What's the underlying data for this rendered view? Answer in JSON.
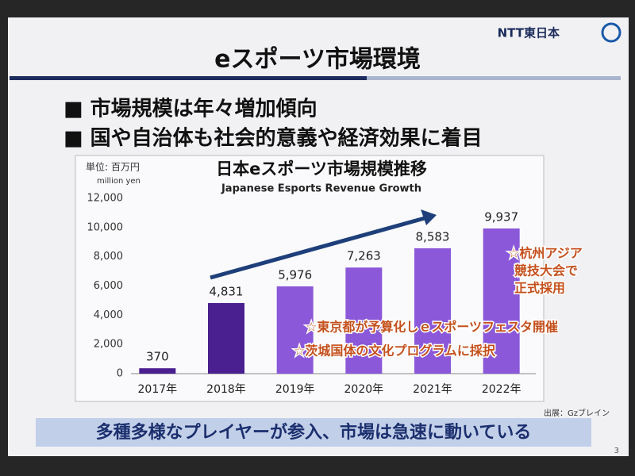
{
  "slide": {
    "logo": "NTT東日本",
    "title": "eスポーツ市場環境",
    "bullets": [
      "■ 市場規模は年々増加傾向",
      "■ 国や自治体も社会的意義や経済効果に着目"
    ],
    "source": "出展：Gzブレイン",
    "banner": "多種多様なプレイヤーが参入、市場は急速に動いている",
    "page_number": "3"
  },
  "chart_data": {
    "type": "bar",
    "title": "日本eスポーツ市場規模推移",
    "subtitle": "Japanese Esports Revenue Growth",
    "unit_label": "単位: 百万円",
    "unit_label_en": "million yen",
    "categories": [
      "2017年",
      "2018年",
      "2019年",
      "2020年",
      "2021年",
      "2022年"
    ],
    "values": [
      370,
      4831,
      5976,
      7263,
      8583,
      9937
    ],
    "value_labels": [
      "370",
      "4,831",
      "5,976",
      "7,263",
      "8,583",
      "9,937"
    ],
    "colors": [
      "#4a1f8f",
      "#4a1f8f",
      "#8a58d8",
      "#8a58d8",
      "#8a58d8",
      "#8a58d8"
    ],
    "ylim": [
      0,
      12000
    ],
    "yticks": [
      0,
      {
        "value": 2000,
        "label": "2,000"
      },
      {
        "value": 4000,
        "label": "4,000"
      },
      {
        "value": 6000,
        "label": "6,000"
      },
      {
        "value": 8000,
        "label": "8,000"
      },
      {
        "value": 10000,
        "label": "10,000"
      },
      {
        "value": 12000,
        "label": "12,000"
      }
    ],
    "annotations": [
      [
        "☆杭州アジア",
        "競技大会で",
        "正式採用"
      ],
      [
        "☆東京都が予算化しｅスポーツフェスタ開催"
      ],
      [
        "☆茨城国体の文化プログラムに採択"
      ]
    ]
  }
}
